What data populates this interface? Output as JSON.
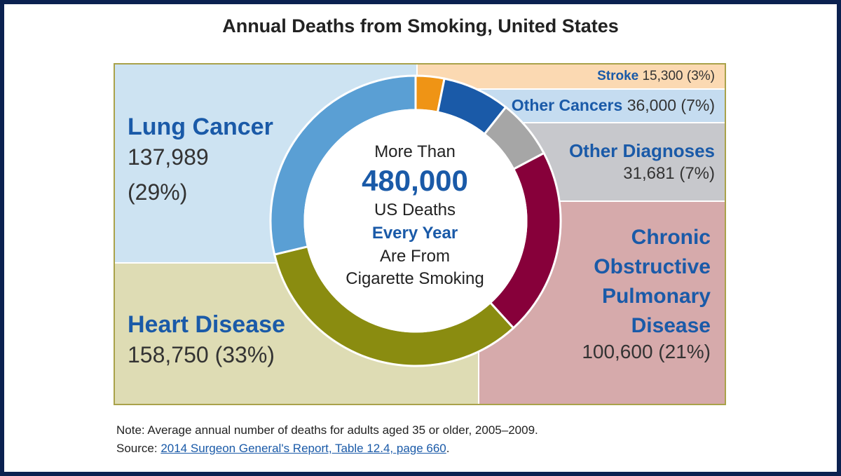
{
  "title": "Annual Deaths from Smoking, United States",
  "center": {
    "line1": "More Than",
    "big": "480,000",
    "line3": "US Deaths",
    "line4": "Every Year",
    "line5": "Are From",
    "line6": "Cigarette Smoking"
  },
  "labels": {
    "lung_name": "Lung Cancer",
    "lung_count": "137,989",
    "lung_pct": "(29%)",
    "heart_name": "Heart Disease",
    "heart_val": "158,750 (33%)",
    "stroke_name": "Stroke",
    "stroke_val": "15,300 (3%)",
    "other_cancers_name": "Other Cancers",
    "other_cancers_val": "36,000 (7%)",
    "other_diag_name": "Other Diagnoses",
    "other_diag_val": "31,681 (7%)",
    "copd_l1": "Chronic",
    "copd_l2": "Obstructive",
    "copd_l3": "Pulmonary",
    "copd_l4": "Disease",
    "copd_val": "100,600 (21%)"
  },
  "note": "Note: Average annual number of deaths for adults aged 35 or older, 2005–2009.",
  "source_prefix": "Source: ",
  "source_link": "2014 Surgeon General's Report, Table 12.4, page 660",
  "source_suffix": ".",
  "chart_data": {
    "type": "pie",
    "categories": [
      "Stroke",
      "Other Cancers",
      "Other Diagnoses",
      "Chronic Obstructive Pulmonary Disease",
      "Heart Disease",
      "Lung Cancer"
    ],
    "values": [
      15300,
      36000,
      31681,
      100600,
      158750,
      137989
    ],
    "percents": [
      3,
      7,
      7,
      21,
      33,
      29
    ],
    "colors": [
      "#ef9415",
      "#1a5aa8",
      "#a6a6a6",
      "#87003a",
      "#8a8c10",
      "#5a9fd4"
    ],
    "region_colors": {
      "stroke": "#fbd9b2",
      "other_cancers": "#c5dcf0",
      "other_diag": "#c7c8cc",
      "copd": "#d6aaab",
      "heart": "#dedcb4",
      "lung": "#cde3f2"
    },
    "total_label": "480,000"
  }
}
